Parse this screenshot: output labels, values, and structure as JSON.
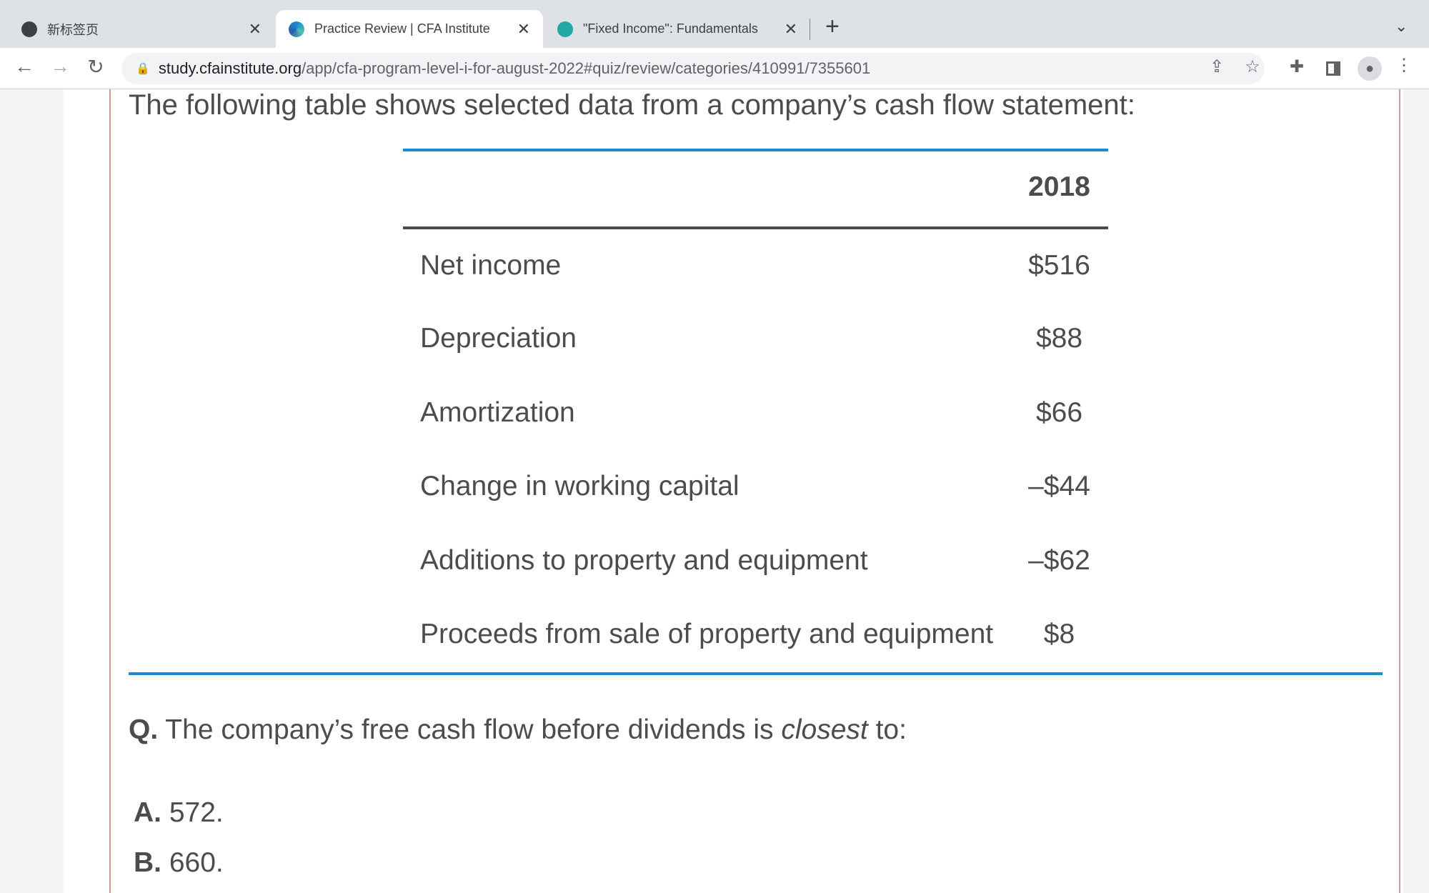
{
  "browser": {
    "tabs": [
      {
        "title": "新标签页",
        "icon": "chrome-icon",
        "active": false
      },
      {
        "title": "Practice Review | CFA Institute",
        "icon": "cfa-logo-icon",
        "active": true
      },
      {
        "title": "\"Fixed Income\": Fundamentals",
        "icon": "app-logo-icon",
        "active": false
      }
    ],
    "new_tab": "+",
    "url_host": "study.cfainstitute.org",
    "url_path": "/app/cfa-program-level-i-for-august-2022#quiz/review/categories/410991/7355601"
  },
  "content": {
    "intro": "The following table shows selected data from a company’s cash flow statement:",
    "table": {
      "header": "2018",
      "rows": [
        {
          "label": "Net income",
          "value": "$516"
        },
        {
          "label": "Depreciation",
          "value": "$88"
        },
        {
          "label": "Amortization",
          "value": "$66"
        },
        {
          "label": "Change in working capital",
          "value": "–$44"
        },
        {
          "label": "Additions to property and equipment",
          "value": "–$62"
        },
        {
          "label": "Proceeds from sale of property and equipment",
          "value": "$8"
        }
      ]
    },
    "question": {
      "prefix": "Q.",
      "before": " The company’s free cash flow before dividends is ",
      "emph": "closest",
      "after": " to:"
    },
    "options": [
      {
        "letter": "A.",
        "text": " 572."
      },
      {
        "letter": "B.",
        "text": " 660."
      }
    ]
  },
  "colors": {
    "accent_blue": "#1a8ad4",
    "border_red": "#d69a98",
    "text": "#4b4c50"
  }
}
